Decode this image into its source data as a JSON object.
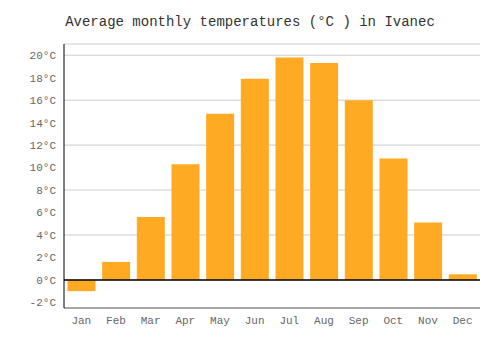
{
  "chart_data": {
    "type": "bar",
    "title": "Average monthly temperatures (°C ) in Ivanec",
    "categories": [
      "Jan",
      "Feb",
      "Mar",
      "Apr",
      "May",
      "Jun",
      "Jul",
      "Aug",
      "Sep",
      "Oct",
      "Nov",
      "Dec"
    ],
    "values": [
      -1.0,
      1.6,
      5.6,
      10.3,
      14.8,
      17.9,
      19.8,
      19.3,
      16.0,
      10.8,
      5.1,
      0.5
    ],
    "color": "#FFAA22",
    "ylim": [
      -2.5,
      21.0
    ],
    "yticks": [
      {
        "value": -2,
        "label": "-2°C"
      },
      {
        "value": 0,
        "label": "0°C"
      },
      {
        "value": 2,
        "label": "2°C"
      },
      {
        "value": 4,
        "label": "4°C"
      },
      {
        "value": 6,
        "label": "6°C"
      },
      {
        "value": 8,
        "label": "8°C"
      },
      {
        "value": 10,
        "label": "10°C"
      },
      {
        "value": 12,
        "label": "12°C"
      },
      {
        "value": 14,
        "label": "14°C"
      },
      {
        "value": 16,
        "label": "16°C"
      },
      {
        "value": 18,
        "label": "18°C"
      },
      {
        "value": 20,
        "label": "20°C"
      }
    ],
    "grid": true
  }
}
